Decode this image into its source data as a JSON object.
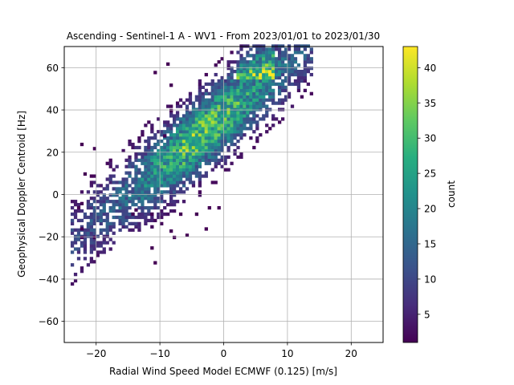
{
  "chart_data": {
    "type": "heatmap",
    "title": "Ascending - Sentinel-1 A - WV1 - From 2023/01/01 to 2023/01/30",
    "xlabel": "Radial Wind Speed Model ECMWF (0.125) [m/s]",
    "ylabel": "Geophysical Doppler Centroid [Hz]",
    "xlim": [
      -25,
      25
    ],
    "ylim": [
      -70,
      70
    ],
    "xticks": [
      -20,
      -10,
      0,
      10,
      20
    ],
    "yticks": [
      -60,
      -40,
      -20,
      0,
      20,
      40,
      60
    ],
    "grid": true,
    "colormap": "viridis",
    "colorbar": {
      "label": "count",
      "range": [
        1,
        43
      ],
      "ticks": [
        5,
        10,
        15,
        20,
        25,
        30,
        35,
        40
      ]
    },
    "bin_width": {
      "x": 0.5,
      "y": 1.5
    },
    "distribution": {
      "slope": 2.45,
      "intercept": 37,
      "spread_hz": 12,
      "peak_count": 43,
      "x_range": [
        -24,
        14
      ]
    },
    "outliers": [
      {
        "x": -22.5,
        "y": 23
      },
      {
        "x": -20.5,
        "y": 21
      },
      {
        "x": -22,
        "y": 9
      },
      {
        "x": -22.5,
        "y": -5
      },
      {
        "x": -23,
        "y": -7
      },
      {
        "x": -22.5,
        "y": -17
      },
      {
        "x": -22.5,
        "y": -21
      },
      {
        "x": -20.5,
        "y": -21
      },
      {
        "x": -11.5,
        "y": -26
      },
      {
        "x": -11,
        "y": -33
      },
      {
        "x": -8.5,
        "y": -18
      },
      {
        "x": -8,
        "y": -21
      },
      {
        "x": -6,
        "y": -20
      },
      {
        "x": -3,
        "y": -17
      },
      {
        "x": -2.5,
        "y": -7
      },
      {
        "x": -4.5,
        "y": -10
      },
      {
        "x": -7,
        "y": -10
      },
      {
        "x": -1,
        "y": -7
      },
      {
        "x": -11.5,
        "y": -10
      },
      {
        "x": -14,
        "y": -8
      },
      {
        "x": -14.5,
        "y": -10
      },
      {
        "x": -11,
        "y": 57
      },
      {
        "x": -9,
        "y": 61
      },
      {
        "x": -8.5,
        "y": 51
      },
      {
        "x": -8.5,
        "y": 39
      },
      {
        "x": -9.5,
        "y": 27
      }
    ]
  }
}
